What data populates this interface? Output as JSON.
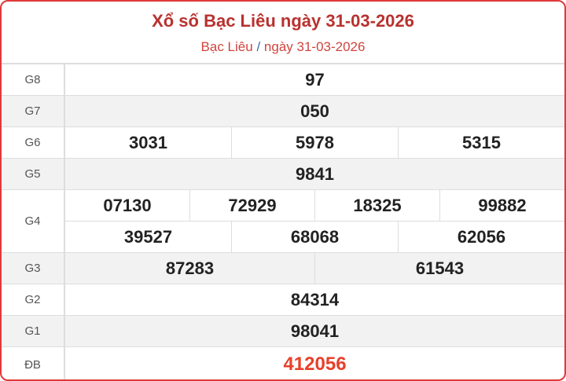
{
  "header": {
    "title": "Xổ số Bạc Liêu ngày 31-03-2026",
    "breadcrumb_province": "Bạc Liêu",
    "breadcrumb_sep": "/",
    "breadcrumb_date": "ngày 31-03-2026"
  },
  "colors": {
    "border": "#e0393b",
    "title": "#b8312f",
    "special": "#e8402a"
  },
  "prizes": [
    {
      "label": "G8",
      "rows": [
        [
          "97"
        ]
      ]
    },
    {
      "label": "G7",
      "rows": [
        [
          "050"
        ]
      ]
    },
    {
      "label": "G6",
      "rows": [
        [
          "3031",
          "5978",
          "5315"
        ]
      ]
    },
    {
      "label": "G5",
      "rows": [
        [
          "9841"
        ]
      ]
    },
    {
      "label": "G4",
      "rows": [
        [
          "07130",
          "72929",
          "18325",
          "99882"
        ],
        [
          "39527",
          "68068",
          "62056"
        ]
      ]
    },
    {
      "label": "G3",
      "rows": [
        [
          "87283",
          "61543"
        ]
      ]
    },
    {
      "label": "G2",
      "rows": [
        [
          "84314"
        ]
      ]
    },
    {
      "label": "G1",
      "rows": [
        [
          "98041"
        ]
      ]
    },
    {
      "label": "ĐB",
      "rows": [
        [
          "412056"
        ]
      ]
    }
  ]
}
